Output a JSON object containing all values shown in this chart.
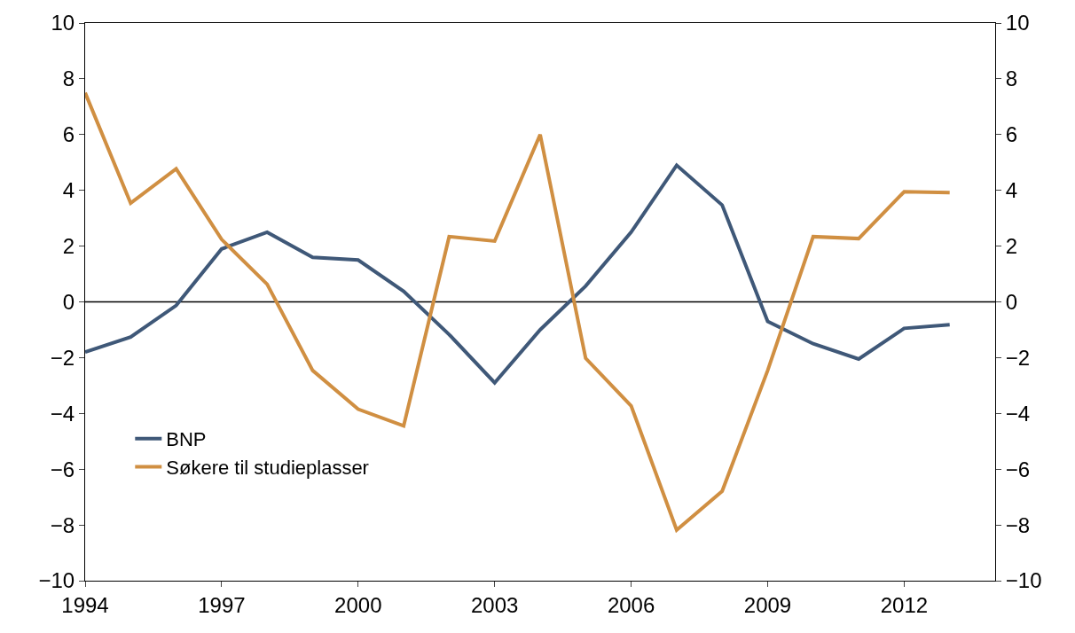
{
  "chart_data": {
    "type": "line",
    "x": [
      1994,
      1995,
      1996,
      1997,
      1998,
      1999,
      2000,
      2001,
      2002,
      2003,
      2004,
      2005,
      2006,
      2007,
      2008,
      2009,
      2010,
      2011,
      2012,
      2013
    ],
    "series": [
      {
        "name": "BNP",
        "color": "#3f5878",
        "values": [
          -1.8,
          -1.26,
          -0.13,
          1.9,
          2.5,
          1.6,
          1.5,
          0.38,
          -1.17,
          -2.9,
          -1.0,
          0.57,
          2.5,
          4.9,
          3.47,
          -0.7,
          -1.5,
          -2.05,
          -0.95,
          -0.82
        ]
      },
      {
        "name": "Søkere til studieplasser",
        "color": "#d08f42",
        "values": [
          7.5,
          3.54,
          4.77,
          2.24,
          0.63,
          -2.46,
          -3.85,
          -4.45,
          2.34,
          2.18,
          6.0,
          -2.02,
          -3.73,
          -8.18,
          -6.79,
          -2.46,
          2.34,
          2.27,
          3.95,
          3.92
        ]
      }
    ],
    "xlim": [
      1994,
      2014
    ],
    "xticks": [
      1994,
      1997,
      2000,
      2003,
      2006,
      2009,
      2012
    ],
    "ylim": [
      -10,
      10
    ],
    "yticks": [
      {
        "value": -10,
        "label": "−10"
      },
      {
        "value": -8,
        "label": "−8"
      },
      {
        "value": -6,
        "label": "−6"
      },
      {
        "value": -4,
        "label": "−4"
      },
      {
        "value": -2,
        "label": "−2"
      },
      0,
      2,
      4,
      6,
      8,
      10
    ],
    "y2lim": [
      -10,
      10
    ],
    "y2ticks": [
      {
        "value": -10,
        "label": "−10"
      },
      {
        "value": -8,
        "label": "−8"
      },
      {
        "value": -6,
        "label": "−6"
      },
      {
        "value": -4,
        "label": "−4"
      },
      {
        "value": -2,
        "label": "−2"
      },
      0,
      2,
      4,
      6,
      8,
      10
    ],
    "ref_lines": [
      {
        "axis": "y",
        "value": 0,
        "color": "#000000"
      }
    ],
    "legend": "bottom left",
    "grid": false,
    "marker": "none",
    "line_style": "solid"
  }
}
